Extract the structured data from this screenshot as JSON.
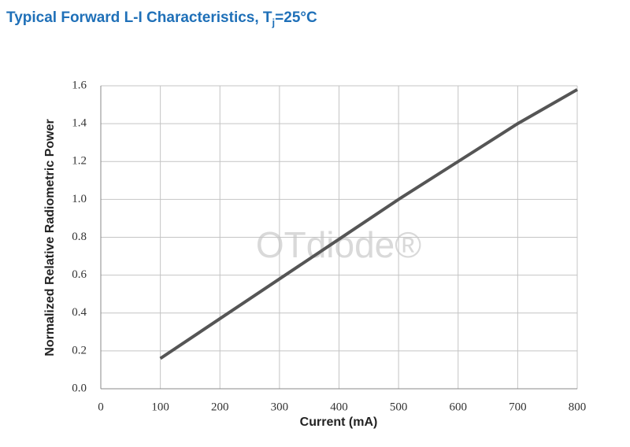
{
  "chart_data": {
    "type": "line",
    "title_parts": [
      "Typical Forward L-I Characteristics, T",
      "j",
      "=25°C"
    ],
    "watermark": "OTdiode®",
    "x_label": "Current (mA)",
    "y_label": "Normalized Relative Radiometric Power",
    "x": [
      100,
      200,
      300,
      400,
      500,
      600,
      700,
      800
    ],
    "series": [
      {
        "color": "#555555",
        "values": [
          0.16,
          0.37,
          0.58,
          0.79,
          1.0,
          1.2,
          1.4,
          1.58
        ]
      }
    ],
    "xlim": [
      0,
      800
    ],
    "xticks": [
      0,
      100,
      200,
      300,
      400,
      500,
      600,
      700,
      800
    ],
    "ylim": [
      0,
      1.6
    ],
    "yticks": [
      {
        "value": 0,
        "label": "0.0"
      },
      0.2,
      0.4,
      0.6,
      0.8,
      {
        "value": 1,
        "label": "1.0"
      },
      1.2,
      1.4,
      1.6
    ],
    "grid": true
  }
}
